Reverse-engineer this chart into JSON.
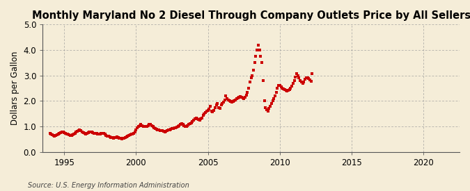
{
  "title": "Monthly Maryland No 2 Diesel Through Company Outlets Price by All Sellers",
  "ylabel": "Dollars per Gallon",
  "source": "Source: U.S. Energy Information Administration",
  "xlim": [
    1993.5,
    2022.5
  ],
  "ylim": [
    0.0,
    5.0
  ],
  "yticks": [
    0.0,
    1.0,
    2.0,
    3.0,
    4.0,
    5.0
  ],
  "xticks": [
    1995,
    2000,
    2005,
    2010,
    2015,
    2020
  ],
  "dot_color": "#CC0000",
  "background_color": "#F5EDD8",
  "grid_color": "#999999",
  "title_fontsize": 10.5,
  "label_fontsize": 8.5,
  "tick_fontsize": 8.5,
  "data": [
    [
      1994.0,
      0.72
    ],
    [
      1994.08,
      0.7
    ],
    [
      1994.17,
      0.68
    ],
    [
      1994.25,
      0.65
    ],
    [
      1994.33,
      0.63
    ],
    [
      1994.42,
      0.65
    ],
    [
      1994.5,
      0.67
    ],
    [
      1994.58,
      0.7
    ],
    [
      1994.67,
      0.73
    ],
    [
      1994.75,
      0.76
    ],
    [
      1994.83,
      0.79
    ],
    [
      1994.92,
      0.77
    ],
    [
      1995.0,
      0.75
    ],
    [
      1995.08,
      0.73
    ],
    [
      1995.17,
      0.71
    ],
    [
      1995.25,
      0.7
    ],
    [
      1995.33,
      0.68
    ],
    [
      1995.42,
      0.65
    ],
    [
      1995.5,
      0.66
    ],
    [
      1995.58,
      0.68
    ],
    [
      1995.67,
      0.71
    ],
    [
      1995.75,
      0.74
    ],
    [
      1995.83,
      0.77
    ],
    [
      1995.92,
      0.8
    ],
    [
      1996.0,
      0.84
    ],
    [
      1996.08,
      0.87
    ],
    [
      1996.17,
      0.85
    ],
    [
      1996.25,
      0.79
    ],
    [
      1996.33,
      0.75
    ],
    [
      1996.42,
      0.72
    ],
    [
      1996.5,
      0.71
    ],
    [
      1996.58,
      0.73
    ],
    [
      1996.67,
      0.75
    ],
    [
      1996.75,
      0.77
    ],
    [
      1996.83,
      0.79
    ],
    [
      1996.92,
      0.78
    ],
    [
      1997.0,
      0.76
    ],
    [
      1997.08,
      0.74
    ],
    [
      1997.17,
      0.73
    ],
    [
      1997.25,
      0.72
    ],
    [
      1997.33,
      0.7
    ],
    [
      1997.42,
      0.69
    ],
    [
      1997.5,
      0.71
    ],
    [
      1997.58,
      0.72
    ],
    [
      1997.67,
      0.73
    ],
    [
      1997.75,
      0.72
    ],
    [
      1997.83,
      0.69
    ],
    [
      1997.92,
      0.66
    ],
    [
      1998.0,
      0.63
    ],
    [
      1998.08,
      0.61
    ],
    [
      1998.17,
      0.59
    ],
    [
      1998.25,
      0.57
    ],
    [
      1998.33,
      0.56
    ],
    [
      1998.42,
      0.55
    ],
    [
      1998.5,
      0.56
    ],
    [
      1998.58,
      0.57
    ],
    [
      1998.67,
      0.58
    ],
    [
      1998.75,
      0.57
    ],
    [
      1998.83,
      0.55
    ],
    [
      1998.92,
      0.53
    ],
    [
      1999.0,
      0.51
    ],
    [
      1999.08,
      0.53
    ],
    [
      1999.17,
      0.55
    ],
    [
      1999.25,
      0.57
    ],
    [
      1999.33,
      0.59
    ],
    [
      1999.42,
      0.62
    ],
    [
      1999.5,
      0.65
    ],
    [
      1999.58,
      0.67
    ],
    [
      1999.67,
      0.69
    ],
    [
      1999.75,
      0.71
    ],
    [
      1999.83,
      0.74
    ],
    [
      1999.92,
      0.79
    ],
    [
      2000.0,
      0.87
    ],
    [
      2000.08,
      0.94
    ],
    [
      2000.17,
      0.99
    ],
    [
      2000.25,
      1.04
    ],
    [
      2000.33,
      1.07
    ],
    [
      2000.42,
      1.04
    ],
    [
      2000.5,
      1.01
    ],
    [
      2000.58,
      0.99
    ],
    [
      2000.67,
      0.99
    ],
    [
      2000.75,
      1.01
    ],
    [
      2000.83,
      1.04
    ],
    [
      2000.92,
      1.07
    ],
    [
      2001.0,
      1.09
    ],
    [
      2001.08,
      1.04
    ],
    [
      2001.17,
      0.99
    ],
    [
      2001.25,
      0.94
    ],
    [
      2001.33,
      0.91
    ],
    [
      2001.42,
      0.89
    ],
    [
      2001.5,
      0.87
    ],
    [
      2001.58,
      0.86
    ],
    [
      2001.67,
      0.85
    ],
    [
      2001.75,
      0.84
    ],
    [
      2001.83,
      0.83
    ],
    [
      2001.92,
      0.81
    ],
    [
      2002.0,
      0.79
    ],
    [
      2002.08,
      0.81
    ],
    [
      2002.17,
      0.83
    ],
    [
      2002.25,
      0.86
    ],
    [
      2002.33,
      0.87
    ],
    [
      2002.42,
      0.89
    ],
    [
      2002.5,
      0.91
    ],
    [
      2002.58,
      0.93
    ],
    [
      2002.67,
      0.94
    ],
    [
      2002.75,
      0.96
    ],
    [
      2002.83,
      0.98
    ],
    [
      2002.92,
      1.01
    ],
    [
      2003.0,
      1.04
    ],
    [
      2003.08,
      1.09
    ],
    [
      2003.17,
      1.12
    ],
    [
      2003.25,
      1.09
    ],
    [
      2003.33,
      1.04
    ],
    [
      2003.42,
      1.01
    ],
    [
      2003.5,
      0.99
    ],
    [
      2003.58,
      1.04
    ],
    [
      2003.67,
      1.07
    ],
    [
      2003.75,
      1.11
    ],
    [
      2003.83,
      1.14
    ],
    [
      2003.92,
      1.19
    ],
    [
      2004.0,
      1.24
    ],
    [
      2004.08,
      1.29
    ],
    [
      2004.17,
      1.34
    ],
    [
      2004.25,
      1.31
    ],
    [
      2004.33,
      1.27
    ],
    [
      2004.42,
      1.24
    ],
    [
      2004.5,
      1.29
    ],
    [
      2004.58,
      1.34
    ],
    [
      2004.67,
      1.44
    ],
    [
      2004.75,
      1.49
    ],
    [
      2004.83,
      1.54
    ],
    [
      2004.92,
      1.59
    ],
    [
      2005.0,
      1.64
    ],
    [
      2005.08,
      1.69
    ],
    [
      2005.17,
      1.79
    ],
    [
      2005.25,
      1.6
    ],
    [
      2005.33,
      1.57
    ],
    [
      2005.42,
      1.62
    ],
    [
      2005.5,
      1.75
    ],
    [
      2005.58,
      1.85
    ],
    [
      2005.67,
      1.9
    ],
    [
      2005.75,
      1.75
    ],
    [
      2005.83,
      1.72
    ],
    [
      2005.92,
      1.85
    ],
    [
      2006.0,
      1.9
    ],
    [
      2006.08,
      1.95
    ],
    [
      2006.17,
      2.05
    ],
    [
      2006.25,
      2.2
    ],
    [
      2006.33,
      2.1
    ],
    [
      2006.42,
      2.05
    ],
    [
      2006.5,
      2.0
    ],
    [
      2006.58,
      1.97
    ],
    [
      2006.67,
      1.95
    ],
    [
      2006.75,
      1.98
    ],
    [
      2006.83,
      2.0
    ],
    [
      2006.92,
      2.05
    ],
    [
      2007.0,
      2.1
    ],
    [
      2007.08,
      2.12
    ],
    [
      2007.17,
      2.15
    ],
    [
      2007.25,
      2.18
    ],
    [
      2007.33,
      2.15
    ],
    [
      2007.42,
      2.12
    ],
    [
      2007.5,
      2.1
    ],
    [
      2007.58,
      2.15
    ],
    [
      2007.67,
      2.22
    ],
    [
      2007.75,
      2.35
    ],
    [
      2007.83,
      2.5
    ],
    [
      2007.92,
      2.75
    ],
    [
      2008.0,
      2.9
    ],
    [
      2008.08,
      3.0
    ],
    [
      2008.17,
      3.2
    ],
    [
      2008.25,
      3.5
    ],
    [
      2008.33,
      3.75
    ],
    [
      2008.42,
      4.0
    ],
    [
      2008.5,
      4.2
    ],
    [
      2008.58,
      4.0
    ],
    [
      2008.67,
      3.75
    ],
    [
      2008.75,
      3.5
    ],
    [
      2008.83,
      2.8
    ],
    [
      2008.92,
      2.0
    ],
    [
      2009.0,
      1.75
    ],
    [
      2009.08,
      1.65
    ],
    [
      2009.17,
      1.6
    ],
    [
      2009.25,
      1.7
    ],
    [
      2009.33,
      1.8
    ],
    [
      2009.42,
      1.9
    ],
    [
      2009.5,
      2.0
    ],
    [
      2009.58,
      2.1
    ],
    [
      2009.67,
      2.2
    ],
    [
      2009.75,
      2.35
    ],
    [
      2009.83,
      2.5
    ],
    [
      2009.92,
      2.6
    ],
    [
      2010.0,
      2.6
    ],
    [
      2010.08,
      2.55
    ],
    [
      2010.17,
      2.5
    ],
    [
      2010.25,
      2.48
    ],
    [
      2010.33,
      2.45
    ],
    [
      2010.42,
      2.42
    ],
    [
      2010.5,
      2.4
    ],
    [
      2010.58,
      2.42
    ],
    [
      2010.67,
      2.45
    ],
    [
      2010.75,
      2.5
    ],
    [
      2010.83,
      2.58
    ],
    [
      2010.92,
      2.68
    ],
    [
      2011.0,
      2.8
    ],
    [
      2011.08,
      2.95
    ],
    [
      2011.17,
      3.08
    ],
    [
      2011.25,
      3.0
    ],
    [
      2011.33,
      2.9
    ],
    [
      2011.42,
      2.8
    ],
    [
      2011.5,
      2.75
    ],
    [
      2011.58,
      2.7
    ],
    [
      2011.67,
      2.75
    ],
    [
      2011.75,
      2.85
    ],
    [
      2011.83,
      2.9
    ],
    [
      2011.92,
      2.9
    ],
    [
      2012.0,
      2.88
    ],
    [
      2012.08,
      2.82
    ],
    [
      2012.17,
      2.78
    ],
    [
      2012.25,
      3.08
    ]
  ]
}
